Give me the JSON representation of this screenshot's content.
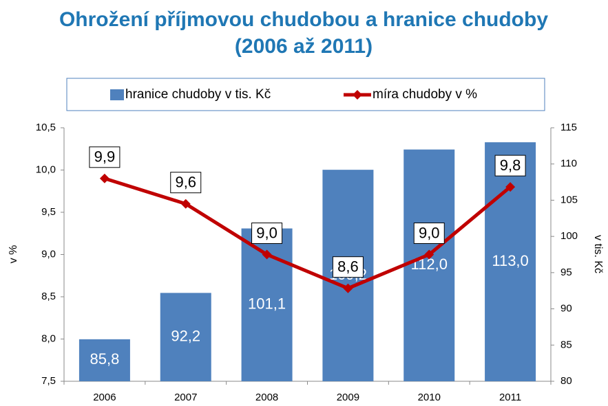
{
  "chart_data": {
    "type": "bar",
    "title": [
      "Ohrožení příjmovou chudobou a hranice chudoby",
      "(2006 až 2011)"
    ],
    "categories": [
      "2006",
      "2007",
      "2008",
      "2009",
      "2010",
      "2011"
    ],
    "series": [
      {
        "name": "hranice chudoby v tis. Kč",
        "type": "bar",
        "axis": "y2",
        "color": "#4f81bd",
        "values": [
          85.8,
          92.2,
          101.1,
          109.2,
          112.0,
          113.0
        ],
        "value_labels": [
          "85,8",
          "92,2",
          "101,1",
          "109,2",
          "112,0",
          "113,0"
        ]
      },
      {
        "name": "míra chudoby v %",
        "type": "line",
        "axis": "y",
        "color": "#c00000",
        "values": [
          9.9,
          9.6,
          9.0,
          8.6,
          9.0,
          9.8
        ],
        "value_labels": [
          "9,9",
          "9,6",
          "9,0",
          "8,6",
          "9,0",
          "9,8"
        ]
      }
    ],
    "ylabel": "v %",
    "y2label": "v tis. Kč",
    "ylim": [
      7.5,
      10.5
    ],
    "yticks": [
      {
        "value": 7.5,
        "label": "7,5"
      },
      {
        "value": 8.0,
        "label": "8,0"
      },
      {
        "value": 8.5,
        "label": "8,5"
      },
      {
        "value": 9.0,
        "label": "9,0"
      },
      {
        "value": 9.5,
        "label": "9,5"
      },
      {
        "value": 10.0,
        "label": "10,0"
      },
      {
        "value": 10.5,
        "label": "10,5"
      }
    ],
    "y2lim": [
      80,
      115
    ],
    "y2ticks": [
      80,
      85,
      90,
      95,
      100,
      105,
      110,
      115
    ],
    "grid": false,
    "legend": "top"
  }
}
